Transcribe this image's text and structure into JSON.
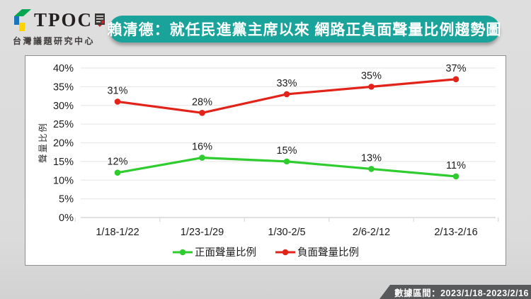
{
  "header": {
    "logo": {
      "brand": "TPOC",
      "subtitle": "台灣議題研究中心"
    },
    "title": "賴清德：就任民進黨主席以來 網路正負面聲量比例趨勢圖"
  },
  "chart_data": {
    "type": "line",
    "categories": [
      "1/18-1/22",
      "1/23-1/29",
      "1/30-2/5",
      "2/6-2/12",
      "2/13-2/16"
    ],
    "series": [
      {
        "name": "正面聲量比例",
        "color": "#2ecc2e",
        "values": [
          12,
          16,
          15,
          13,
          11
        ]
      },
      {
        "name": "負面聲量比例",
        "color": "#e2231a",
        "values": [
          31,
          28,
          33,
          35,
          37
        ]
      }
    ],
    "data_label_suffix": "%",
    "title": "",
    "xlabel": "",
    "ylabel": "聲量比例",
    "ylim": [
      0,
      40
    ],
    "ytick_step": 5,
    "ytick_labels": [
      "0%",
      "5%",
      "10%",
      "15%",
      "20%",
      "25%",
      "30%",
      "35%",
      "40%"
    ],
    "grid": true,
    "legend_position": "bottom"
  },
  "footer": {
    "data_range_label": "數據區間：2023/1/18-2023/2/16"
  },
  "colors": {
    "accent_teal": "#1aa39a",
    "positive_green": "#2ecc2e",
    "negative_red": "#e2231a",
    "footer_bg": "#58595b",
    "grid_line": "#e9e9e9",
    "axis_line": "#cfcfcf"
  }
}
